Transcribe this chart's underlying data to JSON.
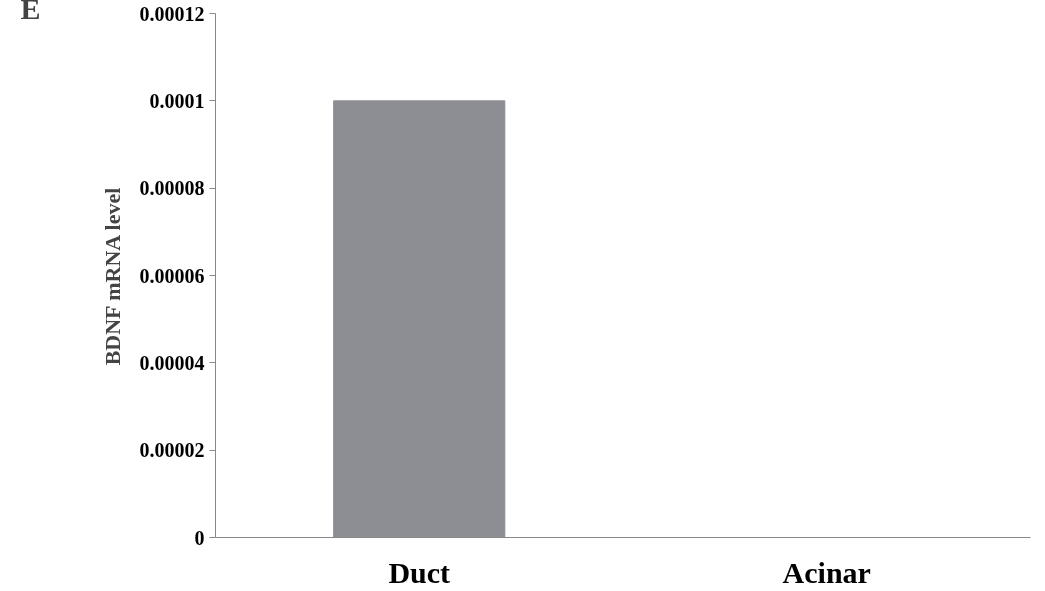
{
  "chart_data": {
    "type": "bar",
    "ylabel": "BDNF mRNA level",
    "annotations": [
      "E"
    ],
    "categories": [
      "Duct",
      "Acinar"
    ],
    "values": [
      0.0001,
      0
    ],
    "color": "#8c8e93",
    "ylim": [
      0,
      0.00012
    ],
    "yticks": [
      0,
      {
        "value": 2e-05,
        "label": "0.00002"
      },
      {
        "value": 4e-05,
        "label": "0.00004"
      },
      {
        "value": 6e-05,
        "label": "0.00006"
      },
      {
        "value": 8e-05,
        "label": "0.00008"
      },
      {
        "value": 0.0001,
        "label": "0.0001"
      },
      {
        "value": 0.00012,
        "label": "0.00012"
      }
    ],
    "grid": false
  }
}
